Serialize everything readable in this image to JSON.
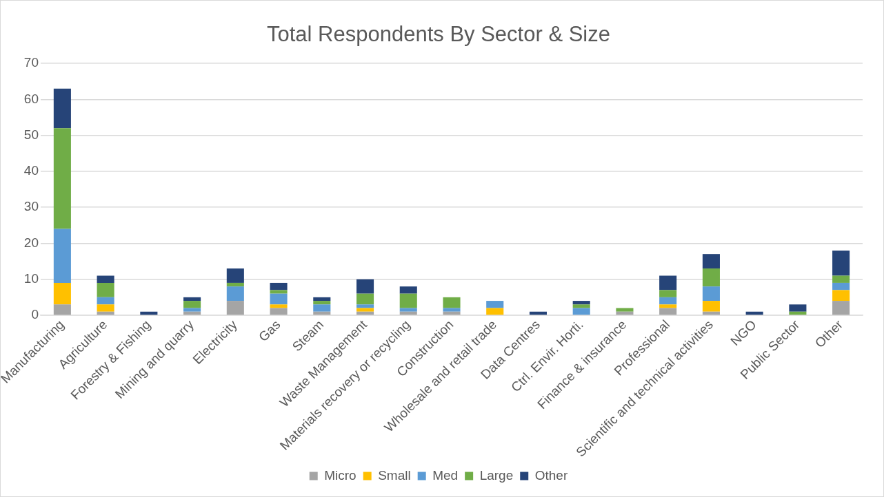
{
  "chart_data": {
    "type": "bar",
    "title": "Total Respondents By Sector & Size",
    "stacked": true,
    "grid": "y",
    "legend": "bottom",
    "categories": [
      "Manufacturing",
      "Agriculture",
      "Forestry & Fishing",
      "Mining and quarry",
      "Electricity",
      "Gas",
      "Steam",
      "Waste Management",
      "Materials recovery or recycling",
      "Construction",
      "Wholesale and retail trade",
      "Data Centres",
      "Ctrl. Envir. Horti.",
      "Finance & insurance",
      "Professional",
      "Scientific and technical activities",
      "NGO",
      "Public Sector",
      "Other"
    ],
    "ylim": [
      0,
      70
    ],
    "yticks": [
      0,
      10,
      20,
      30,
      40,
      50,
      60,
      70
    ],
    "series": [
      {
        "name": "Micro",
        "color": "#a5a5a5",
        "values": [
          3,
          1,
          0,
          1,
          4,
          2,
          1,
          1,
          1,
          1,
          0,
          0,
          0,
          1,
          2,
          1,
          0,
          0,
          4
        ]
      },
      {
        "name": "Small",
        "color": "#ffc000",
        "values": [
          6,
          2,
          0,
          0,
          0,
          1,
          0,
          1,
          0,
          0,
          2,
          0,
          0,
          0,
          1,
          3,
          0,
          0,
          3
        ]
      },
      {
        "name": "Med",
        "color": "#5b9bd5",
        "values": [
          15,
          2,
          0,
          1,
          4,
          3,
          2,
          1,
          1,
          1,
          2,
          0,
          2,
          0,
          2,
          4,
          0,
          0,
          2
        ]
      },
      {
        "name": "Large",
        "color": "#70ad47",
        "values": [
          28,
          4,
          0,
          2,
          1,
          1,
          1,
          3,
          4,
          3,
          0,
          0,
          1,
          1,
          2,
          5,
          0,
          1,
          2
        ]
      },
      {
        "name": "Other",
        "color": "#264478",
        "values": [
          11,
          2,
          1,
          1,
          4,
          2,
          1,
          4,
          2,
          0,
          0,
          1,
          1,
          0,
          4,
          4,
          1,
          2,
          7
        ]
      }
    ]
  }
}
